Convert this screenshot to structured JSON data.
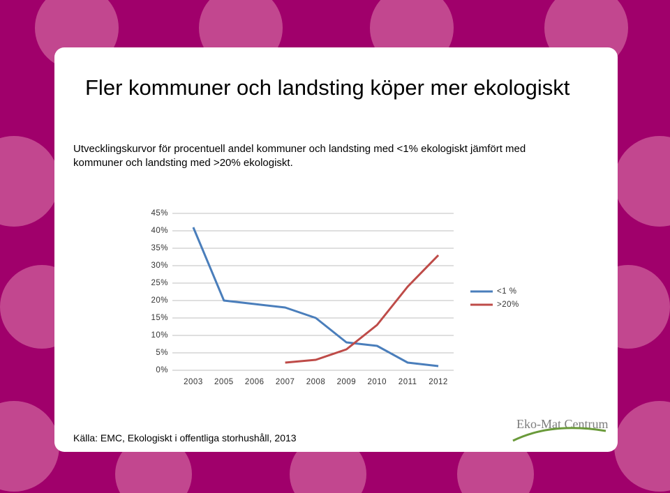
{
  "title": "Fler kommuner och landsting köper mer ekologiskt",
  "subtitle": "Utvecklingskurvor för procentuell andel kommuner och landsting med <1% ekologiskt jämfört med kommuner och landsting med >20% ekologiskt.",
  "source": "Källa: EMC, Ekologiskt i offentliga storhushåll, 2013",
  "logo": "Eko-Mat Centrum",
  "chart_data": {
    "type": "line",
    "categories": [
      "2003",
      "2005",
      "2006",
      "2007",
      "2008",
      "2009",
      "2010",
      "2011",
      "2012"
    ],
    "series": [
      {
        "name": "<1 %",
        "color": "#4a7ebb",
        "values": [
          41,
          20,
          19,
          18,
          15,
          8,
          7,
          2.2,
          1.2
        ]
      },
      {
        "name": ">20%",
        "color": "#be4b48",
        "values": [
          null,
          null,
          null,
          2.2,
          3,
          6,
          13,
          24,
          33
        ]
      }
    ],
    "ylim": [
      0,
      45
    ],
    "yticks": [
      {
        "value": 0,
        "label": "0%"
      },
      {
        "value": 5,
        "label": "5%"
      },
      {
        "value": 10,
        "label": "10%"
      },
      {
        "value": 15,
        "label": "15%"
      },
      {
        "value": 20,
        "label": "20%"
      },
      {
        "value": 25,
        "label": "25%"
      },
      {
        "value": 30,
        "label": "30%"
      },
      {
        "value": 35,
        "label": "35%"
      },
      {
        "value": 40,
        "label": "40%"
      },
      {
        "value": 45,
        "label": "45%"
      }
    ],
    "grid": true,
    "legend": "right"
  }
}
